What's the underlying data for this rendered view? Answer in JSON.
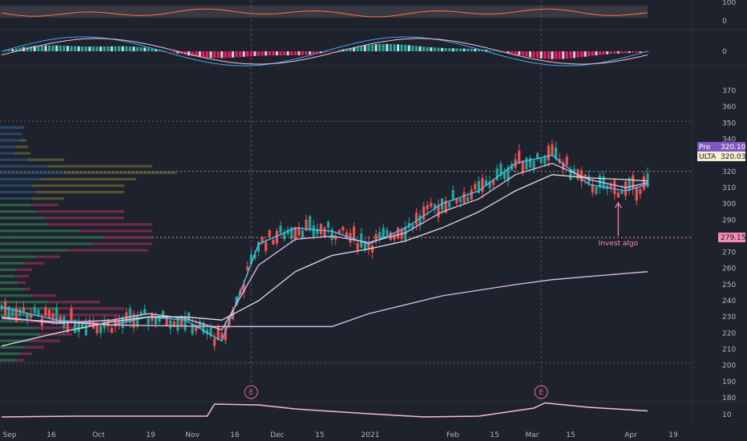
{
  "chart_data": {
    "type": "candlestick",
    "symbol": "ULTA",
    "x_ticks": [
      "Sep",
      "16",
      "Oct",
      "19",
      "Nov",
      "16",
      "Dec",
      "15",
      "2021",
      "Feb",
      "15",
      "Mar",
      "15",
      "Apr",
      "19"
    ],
    "price_ticks": [
      370,
      360,
      350,
      340,
      330,
      320,
      310,
      300,
      290,
      280,
      270,
      260,
      250,
      240,
      230,
      220,
      210,
      200,
      190,
      180
    ],
    "ylim": [
      175,
      375
    ],
    "price_tags": [
      {
        "label": "Pre",
        "value": "320.10",
        "color": "#7e57c2",
        "text_color": "#ffffff"
      },
      {
        "label": "ULTA",
        "value": "320.03",
        "color": "#f5eecf",
        "text_color": "#131722"
      },
      {
        "label": "",
        "value": "279.15",
        "color": "#f48fb1",
        "text_color": "#131722"
      }
    ],
    "reference_lines": [
      351,
      320.05,
      279.15,
      201.5
    ],
    "annotation": {
      "text": "Invest algo",
      "date_index": 168,
      "price": 300
    },
    "earnings_markers": [
      {
        "label": "E",
        "date_index": 68
      },
      {
        "label": "E",
        "date_index": 147
      }
    ],
    "rsi_panel": {
      "ticks": [
        "100",
        "0"
      ]
    },
    "macd_panel": {
      "ticks": [
        "0"
      ]
    },
    "volume_panel": {
      "ticks": [
        "10"
      ]
    },
    "colors": {
      "up": "#26a69a",
      "down": "#ef5350",
      "up_vol_profile": "#2e7d5b",
      "down_vol_profile": "#8b2f52",
      "accent_line": "#f8bbd0"
    },
    "moving_averages": [
      {
        "color": "#4fc3f7",
        "points": [
          [
            0,
            236
          ],
          [
            15,
            228
          ],
          [
            30,
            225
          ],
          [
            40,
            230
          ],
          [
            50,
            228
          ],
          [
            60,
            215
          ],
          [
            70,
            275
          ],
          [
            80,
            285
          ],
          [
            90,
            283
          ],
          [
            100,
            275
          ],
          [
            110,
            285
          ],
          [
            120,
            300
          ],
          [
            130,
            308
          ],
          [
            140,
            325
          ],
          [
            150,
            330
          ],
          [
            160,
            312
          ],
          [
            170,
            308
          ],
          [
            176,
            312
          ]
        ]
      },
      {
        "color": "#e1bee7",
        "points": [
          [
            0,
            230
          ],
          [
            15,
            226
          ],
          [
            30,
            228
          ],
          [
            40,
            232
          ],
          [
            50,
            229
          ],
          [
            60,
            222
          ],
          [
            70,
            262
          ],
          [
            80,
            278
          ],
          [
            90,
            280
          ],
          [
            100,
            276
          ],
          [
            110,
            282
          ],
          [
            120,
            295
          ],
          [
            130,
            303
          ],
          [
            140,
            318
          ],
          [
            150,
            325
          ],
          [
            160,
            315
          ],
          [
            170,
            310
          ],
          [
            176,
            313
          ]
        ]
      },
      {
        "color": "#e0e0e0",
        "points": [
          [
            0,
            212
          ],
          [
            15,
            220
          ],
          [
            30,
            227
          ],
          [
            40,
            230
          ],
          [
            50,
            230
          ],
          [
            60,
            228
          ],
          [
            70,
            240
          ],
          [
            80,
            258
          ],
          [
            90,
            268
          ],
          [
            100,
            272
          ],
          [
            110,
            277
          ],
          [
            120,
            285
          ],
          [
            130,
            295
          ],
          [
            140,
            308
          ],
          [
            150,
            318
          ],
          [
            160,
            316
          ],
          [
            170,
            315
          ],
          [
            176,
            314
          ]
        ]
      },
      {
        "color": "#e1bee7",
        "points": [
          [
            0,
            229
          ],
          [
            30,
            225
          ],
          [
            60,
            224
          ],
          [
            90,
            224
          ],
          [
            100,
            232
          ],
          [
            120,
            243
          ],
          [
            140,
            250
          ],
          [
            150,
            253
          ],
          [
            160,
            255
          ],
          [
            176,
            258
          ]
        ]
      }
    ],
    "volume_line": [
      [
        0,
        1.0
      ],
      [
        20,
        1.2
      ],
      [
        40,
        1.2
      ],
      [
        56,
        1.2
      ],
      [
        58,
        4.2
      ],
      [
        70,
        4.0
      ],
      [
        80,
        3.0
      ],
      [
        100,
        1.8
      ],
      [
        115,
        1.0
      ],
      [
        130,
        1.2
      ],
      [
        145,
        3.2
      ],
      [
        148,
        4.5
      ],
      [
        160,
        3.4
      ],
      [
        176,
        2.5
      ]
    ]
  }
}
